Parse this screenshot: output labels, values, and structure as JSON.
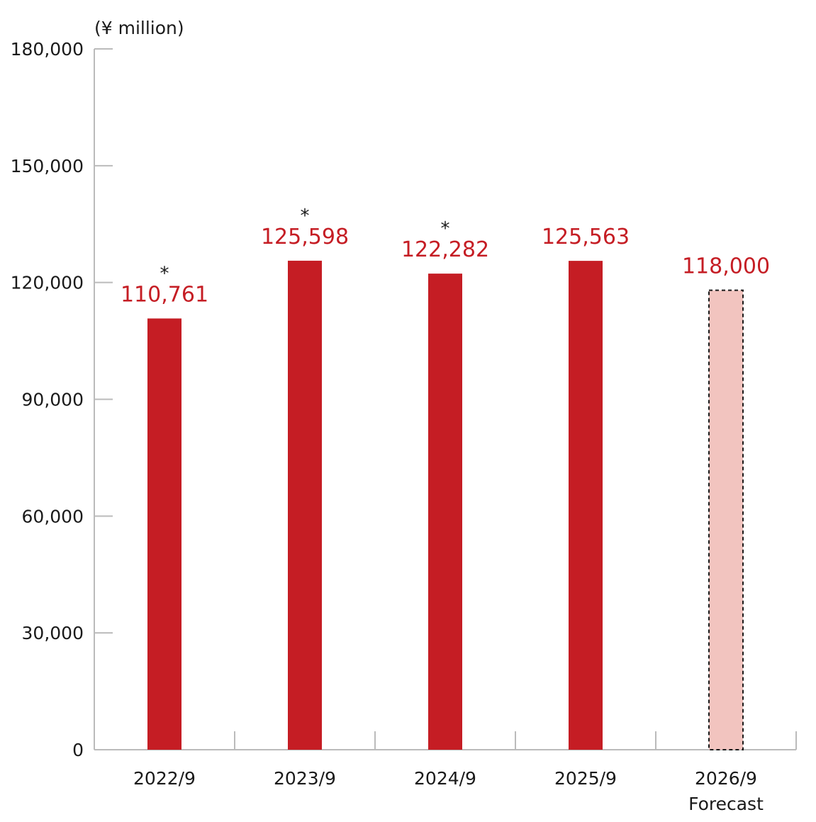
{
  "chart_data": {
    "type": "bar",
    "unit_label": "(¥ million)",
    "title": "",
    "xlabel": "",
    "ylabel": "",
    "ylim": [
      0,
      180000
    ],
    "yticks": [
      0,
      30000,
      60000,
      90000,
      120000,
      150000,
      180000
    ],
    "ytick_labels": [
      "0",
      "30,000",
      "60,000",
      "90,000",
      "120,000",
      "150,000",
      "180,000"
    ],
    "categories": [
      "2022/9",
      "2023/9",
      "2024/9",
      "2025/9",
      "2026/9"
    ],
    "category_sublabels": [
      "",
      "",
      "",
      "",
      "Forecast"
    ],
    "values": [
      110761,
      125598,
      122282,
      125563,
      118000
    ],
    "value_labels": [
      "110,761",
      "125,598",
      "122,282",
      "125,563",
      "118,000"
    ],
    "markers": [
      "*",
      "*",
      "*",
      "",
      ""
    ],
    "forecast": [
      false,
      false,
      false,
      false,
      true
    ],
    "grid": false,
    "legend": "none",
    "colors": {
      "actual_bar": "#c51d24",
      "forecast_bar": "#f2c4bf",
      "forecast_border": "#1a1a1a",
      "value_label": "#c51d24",
      "axis": "#bbbbbb"
    }
  }
}
